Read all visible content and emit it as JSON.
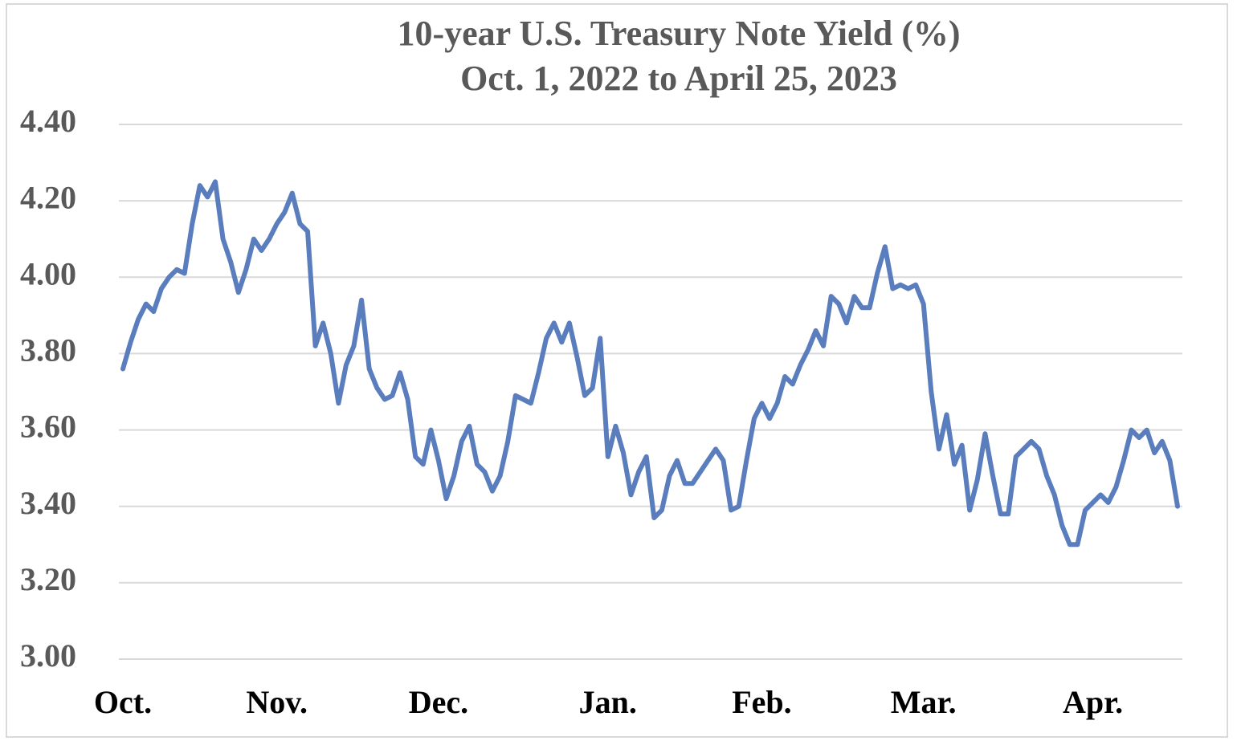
{
  "chart_data": {
    "type": "line",
    "title": "10-year U.S. Treasury Note Yield (%)",
    "subtitle": "Oct. 1, 2022 to April 25, 2023",
    "categories": [
      "Oct.",
      null,
      null,
      null,
      null,
      null,
      null,
      null,
      null,
      null,
      null,
      null,
      null,
      null,
      null,
      null,
      null,
      null,
      null,
      null,
      "Nov.",
      null,
      null,
      null,
      null,
      null,
      null,
      null,
      null,
      null,
      null,
      null,
      null,
      null,
      null,
      null,
      null,
      null,
      null,
      null,
      null,
      "Dec.",
      null,
      null,
      null,
      null,
      null,
      null,
      null,
      null,
      null,
      null,
      null,
      null,
      null,
      null,
      null,
      null,
      null,
      null,
      null,
      null,
      null,
      "Jan.",
      null,
      null,
      null,
      null,
      null,
      null,
      null,
      null,
      null,
      null,
      null,
      null,
      null,
      null,
      null,
      null,
      null,
      null,
      null,
      "Feb.",
      null,
      null,
      null,
      null,
      null,
      null,
      null,
      null,
      null,
      null,
      null,
      null,
      null,
      null,
      null,
      null,
      null,
      null,
      null,
      null,
      "Mar.",
      null,
      null,
      null,
      null,
      null,
      null,
      null,
      null,
      null,
      null,
      null,
      null,
      null,
      null,
      null,
      null,
      null,
      null,
      null,
      null,
      null,
      "Apr.",
      null,
      null,
      null,
      null,
      null,
      null,
      null,
      null,
      null,
      null,
      null
    ],
    "series": [
      {
        "name": "10-year yield",
        "color": "#5a7dbd",
        "values": [
          3.76,
          3.83,
          3.89,
          3.93,
          3.91,
          3.97,
          4.0,
          4.02,
          4.01,
          4.14,
          4.24,
          4.21,
          4.25,
          4.1,
          4.04,
          3.96,
          4.02,
          4.1,
          4.07,
          4.1,
          4.14,
          4.17,
          4.22,
          4.14,
          4.12,
          3.82,
          3.88,
          3.8,
          3.67,
          3.77,
          3.82,
          3.94,
          3.76,
          3.71,
          3.68,
          3.69,
          3.75,
          3.68,
          3.53,
          3.51,
          3.6,
          3.52,
          3.42,
          3.48,
          3.57,
          3.61,
          3.51,
          3.49,
          3.44,
          3.48,
          3.57,
          3.69,
          3.68,
          3.67,
          3.75,
          3.84,
          3.88,
          3.83,
          3.88,
          3.79,
          3.69,
          3.71,
          3.84,
          3.53,
          3.61,
          3.54,
          3.43,
          3.49,
          3.53,
          3.37,
          3.39,
          3.48,
          3.52,
          3.46,
          3.46,
          3.49,
          3.52,
          3.55,
          3.52,
          3.39,
          3.4,
          3.52,
          3.63,
          3.67,
          3.63,
          3.67,
          3.74,
          3.72,
          3.77,
          3.81,
          3.86,
          3.82,
          3.95,
          3.93,
          3.88,
          3.95,
          3.92,
          3.92,
          4.01,
          4.08,
          3.97,
          3.98,
          3.97,
          3.98,
          3.93,
          3.7,
          3.55,
          3.64,
          3.51,
          3.56,
          3.39,
          3.47,
          3.59,
          3.48,
          3.38,
          3.38,
          3.53,
          3.55,
          3.57,
          3.55,
          3.48,
          3.43,
          3.35,
          3.3,
          3.3,
          3.39,
          3.41,
          3.43,
          3.41,
          3.45,
          3.52,
          3.6,
          3.58,
          3.6,
          3.54,
          3.57,
          3.52,
          3.4
        ]
      }
    ],
    "ylim": [
      3.0,
      4.4
    ],
    "yticks": [
      {
        "value": 3.0,
        "label": "3.00"
      },
      {
        "value": 3.2,
        "label": "3.20"
      },
      {
        "value": 3.4,
        "label": "3.40"
      },
      {
        "value": 3.6,
        "label": "3.60"
      },
      {
        "value": 3.8,
        "label": "3.80"
      },
      {
        "value": 4.0,
        "label": "4.00"
      },
      {
        "value": 4.2,
        "label": "4.20"
      },
      {
        "value": 4.4,
        "label": "4.40"
      }
    ],
    "grid": true
  }
}
